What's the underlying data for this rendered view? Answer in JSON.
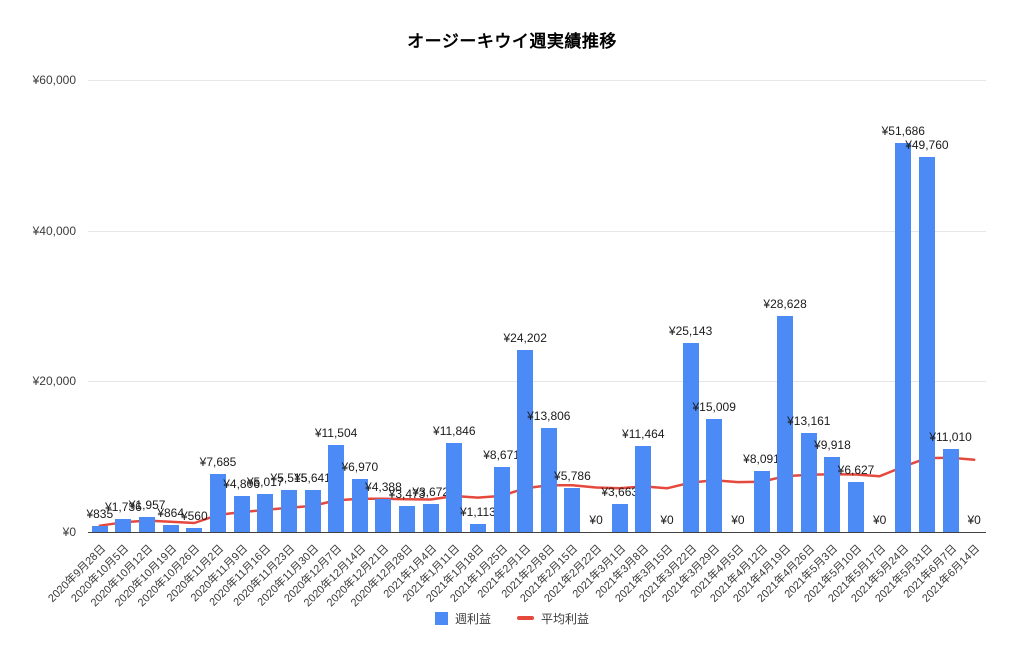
{
  "title": "オージーキウイ週実績推移",
  "legend": {
    "bar_label": "週利益",
    "line_label": "平均利益"
  },
  "colors": {
    "bar": "#4c8bf5",
    "line": "#e5493d",
    "grid": "#e7e7e7",
    "axis_line": "#424242",
    "axis_text": "#3a3a3a",
    "data_label": "#1b1b1b",
    "background": "#ffffff"
  },
  "y_axis": {
    "ticks": [
      {
        "label": "¥0",
        "value": 0
      },
      {
        "label": "¥20,000",
        "value": 20000
      },
      {
        "label": "¥40,000",
        "value": 40000
      },
      {
        "label": "¥60,000",
        "value": 60000
      }
    ]
  },
  "chart_data": {
    "type": "bar",
    "title": "オージーキウイ週実績推移",
    "grid": true,
    "legend_position": "bottom",
    "ylim": [
      0,
      60000
    ],
    "categories": [
      "2020年9月28日",
      "2020年10月5日",
      "2020年10月12日",
      "2020年10月19日",
      "2020年10月26日",
      "2020年11月2日",
      "2020年11月9日",
      "2020年11月16日",
      "2020年11月23日",
      "2020年11月30日",
      "2020年12月7日",
      "2020年12月14日",
      "2020年12月21日",
      "2020年12月28日",
      "2021年1月4日",
      "2021年1月11日",
      "2021年1月18日",
      "2021年1月25日",
      "2021年2月1日",
      "2021年2月8日",
      "2021年2月15日",
      "2021年2月22日",
      "2021年3月1日",
      "2021年3月8日",
      "2021年3月15日",
      "2021年3月22日",
      "2021年3月29日",
      "2021年4月5日",
      "2021年4月12日",
      "2021年4月19日",
      "2021年4月26日",
      "2021年5月3日",
      "2021年5月10日",
      "2021年5月17日",
      "2021年5月24日",
      "2021年5月31日",
      "2021年6月7日",
      "2021年6月14日"
    ],
    "series": [
      {
        "name": "週利益",
        "type": "bar",
        "values": [
          835,
          1736,
          1957,
          864,
          560,
          7685,
          4806,
          5017,
          5515,
          5641,
          11504,
          6970,
          4388,
          3473,
          3672,
          11846,
          1113,
          8671,
          24202,
          13806,
          5786,
          0,
          3663,
          11464,
          0,
          25143,
          15009,
          0,
          8091,
          28628,
          13161,
          9918,
          6627,
          0,
          51686,
          49760,
          11010,
          0
        ]
      },
      {
        "name": "平均利益",
        "type": "line",
        "values": [
          835,
          1286,
          1509,
          1348,
          1190,
          2273,
          2635,
          2933,
          3219,
          3462,
          4193,
          4424,
          4421,
          4354,
          4308,
          4779,
          4564,
          4792,
          5813,
          6213,
          6193,
          5911,
          5814,
          6049,
          5807,
          6551,
          6864,
          6619,
          6670,
          7402,
          7587,
          7660,
          7629,
          7404,
          8670,
          9811,
          9843,
          9584
        ]
      }
    ],
    "bar_labels": [
      "¥835",
      "¥1,736",
      "¥1,957",
      "¥864",
      "¥560",
      "¥7,685",
      "¥4,806",
      "¥5,017",
      "¥5,515",
      "¥5,641",
      "¥11,504",
      "¥6,970",
      "¥4,388",
      "¥3,473",
      "¥3,672",
      "¥11,846",
      "¥1,113",
      "¥8,671",
      "¥24,202",
      "¥13,806",
      "¥5,786",
      "¥0",
      "¥3,663",
      "¥11,464",
      "¥0",
      "¥25,143",
      "¥15,009",
      "¥0",
      "¥8,091",
      "¥28,628",
      "¥13,161",
      "¥9,918",
      "¥6,627",
      "¥0",
      "¥51,686",
      "¥49,760",
      "¥11,010",
      "¥0"
    ]
  }
}
